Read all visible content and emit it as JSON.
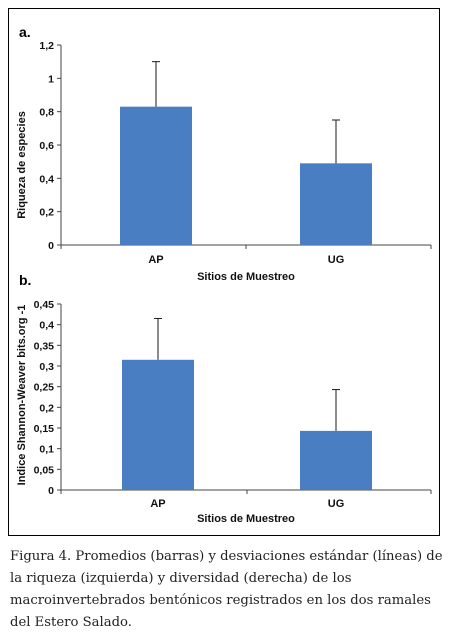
{
  "figure": {
    "caption": "Figura 4. Promedios (barras) y desviaciones estándar (líneas) de la riqueza (izquierda) y diversidad (derecha) de los macroinvertebrados bentónicos registrados en los dos ramales del Estero Salado."
  },
  "colors": {
    "bar": "#4a7ec2",
    "error": "#1a1a1a",
    "axis": "#444444"
  },
  "chart_data": [
    {
      "panel_label": "a.",
      "type": "bar",
      "categories": [
        "AP",
        "UG"
      ],
      "values": [
        0.83,
        0.49
      ],
      "errors": [
        0.27,
        0.26
      ],
      "xlabel": "Sitios de Muestreo",
      "ylabel": "Riqueza de especies",
      "ylim": [
        0,
        1.2
      ],
      "yticks": [
        "0",
        "0,2",
        "0,4",
        "0,6",
        "0,8",
        "1",
        "1,2"
      ],
      "grid": false,
      "legend": "none"
    },
    {
      "panel_label": "b.",
      "type": "bar",
      "categories": [
        "AP",
        "UG"
      ],
      "values": [
        0.315,
        0.143
      ],
      "errors": [
        0.1,
        0.1
      ],
      "xlabel": "Sitios de Muestreo",
      "ylabel": "Indice Shannon-Weaver bits.org -1",
      "ylim": [
        0,
        0.45
      ],
      "yticks": [
        "0",
        "0,05",
        "0,1",
        "0,15",
        "0,2",
        "0,25",
        "0,3",
        "0,35",
        "0,4",
        "0,45"
      ],
      "grid": false,
      "legend": "none"
    }
  ]
}
